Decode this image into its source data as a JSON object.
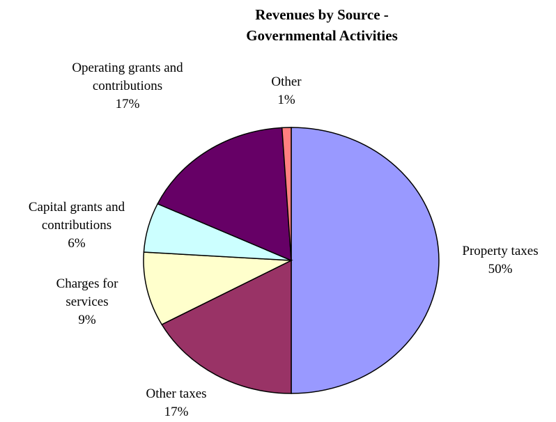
{
  "chart_data": {
    "type": "pie",
    "title": "Revenues by Source - Governmental Activities",
    "categories": [
      "Property taxes",
      "Other taxes",
      "Charges for services",
      "Capital grants and contributions",
      "Operating grants and contributions",
      "Other"
    ],
    "values": [
      50,
      17,
      9,
      6,
      17,
      1
    ],
    "value_labels": [
      "50%",
      "17%",
      "9%",
      "6%",
      "17%",
      "1%"
    ],
    "colors": [
      "#9999ff",
      "#993366",
      "#ffffcc",
      "#ccffff",
      "#660066",
      "#ff8080"
    ]
  }
}
